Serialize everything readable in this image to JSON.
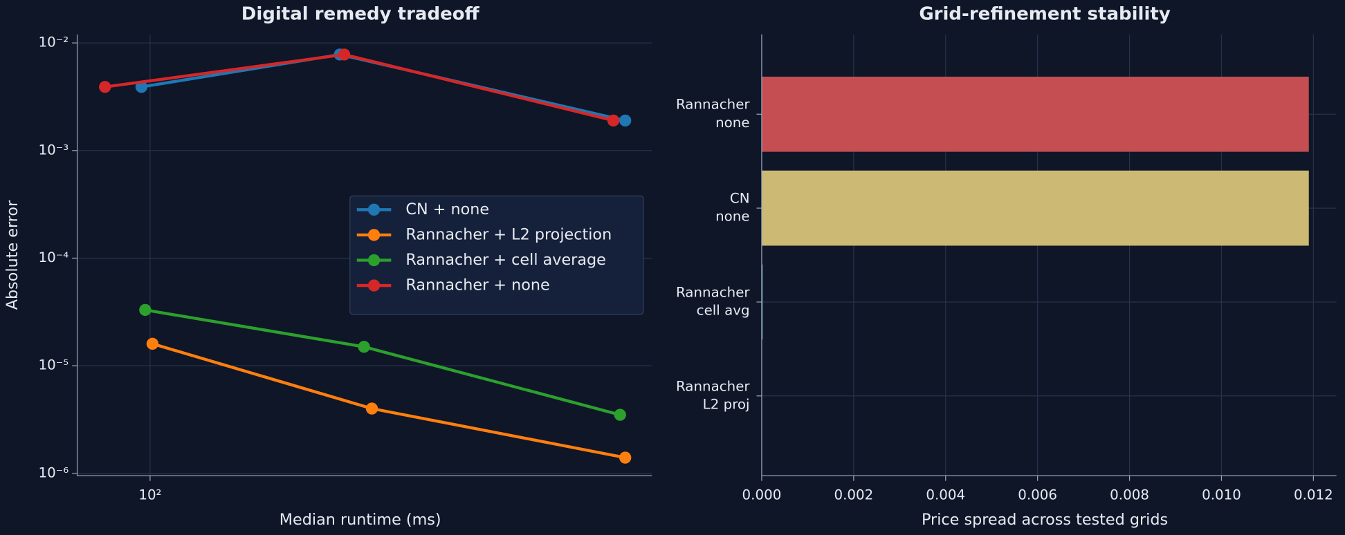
{
  "chart_data": [
    {
      "type": "line",
      "title": "Digital remedy tradeoff",
      "xlabel": "Median runtime (ms)",
      "ylabel": "Absolute error",
      "xscale": "log",
      "yscale": "log",
      "grid": true,
      "legend": "center right",
      "xlim": [
        74,
        795
      ],
      "ylim": [
        9.5e-07,
        0.012
      ],
      "xticks": [
        {
          "value": 100,
          "label": "10²"
        }
      ],
      "yticks": [
        {
          "value": 1e-06,
          "label": "10⁻⁶"
        },
        {
          "value": 1e-05,
          "label": "10⁻⁵"
        },
        {
          "value": 0.0001,
          "label": "10⁻⁴"
        },
        {
          "value": 0.001,
          "label": "10⁻³"
        },
        {
          "value": 0.01,
          "label": "10⁻²"
        }
      ],
      "series": [
        {
          "name": "CN + none",
          "color": "#1f77b4",
          "x": [
            96.5,
            219,
            712
          ],
          "values": [
            0.0039,
            0.0078,
            0.0019
          ]
        },
        {
          "name": "Rannacher + L2 projection",
          "color": "#ff7f0e",
          "x": [
            101,
            250,
            712
          ],
          "values": [
            1.6e-05,
            4e-06,
            1.4e-06
          ]
        },
        {
          "name": "Rannacher + cell average",
          "color": "#2ca02c",
          "x": [
            98,
            242,
            697
          ],
          "values": [
            3.3e-05,
            1.5e-05,
            3.5e-06
          ]
        },
        {
          "name": "Rannacher + none",
          "color": "#d62728",
          "x": [
            83,
            223,
            678
          ],
          "values": [
            0.0039,
            0.0078,
            0.0019
          ]
        }
      ]
    },
    {
      "type": "barh",
      "title": "Grid-refinement stability",
      "xlabel": "Price spread across tested grids",
      "grid": true,
      "categories": [
        [
          "Rannacher",
          "none"
        ],
        [
          "CN",
          "none"
        ],
        [
          "Rannacher",
          "cell avg"
        ],
        [
          "Rannacher",
          "L2 proj"
        ]
      ],
      "values": [
        0.0119,
        0.0119,
        2e-05,
        0
      ],
      "colors": [
        "#c44e52",
        "#ccb974",
        "#64b5cd",
        "#55a868"
      ],
      "xlim": [
        0,
        0.0125
      ],
      "xticks": [
        {
          "value": 0,
          "label": "0.000"
        },
        {
          "value": 0.002,
          "label": "0.002"
        },
        {
          "value": 0.004,
          "label": "0.004"
        },
        {
          "value": 0.006,
          "label": "0.006"
        },
        {
          "value": 0.008,
          "label": "0.008"
        },
        {
          "value": 0.01,
          "label": "0.010"
        },
        {
          "value": 0.012,
          "label": "0.012"
        }
      ]
    }
  ]
}
